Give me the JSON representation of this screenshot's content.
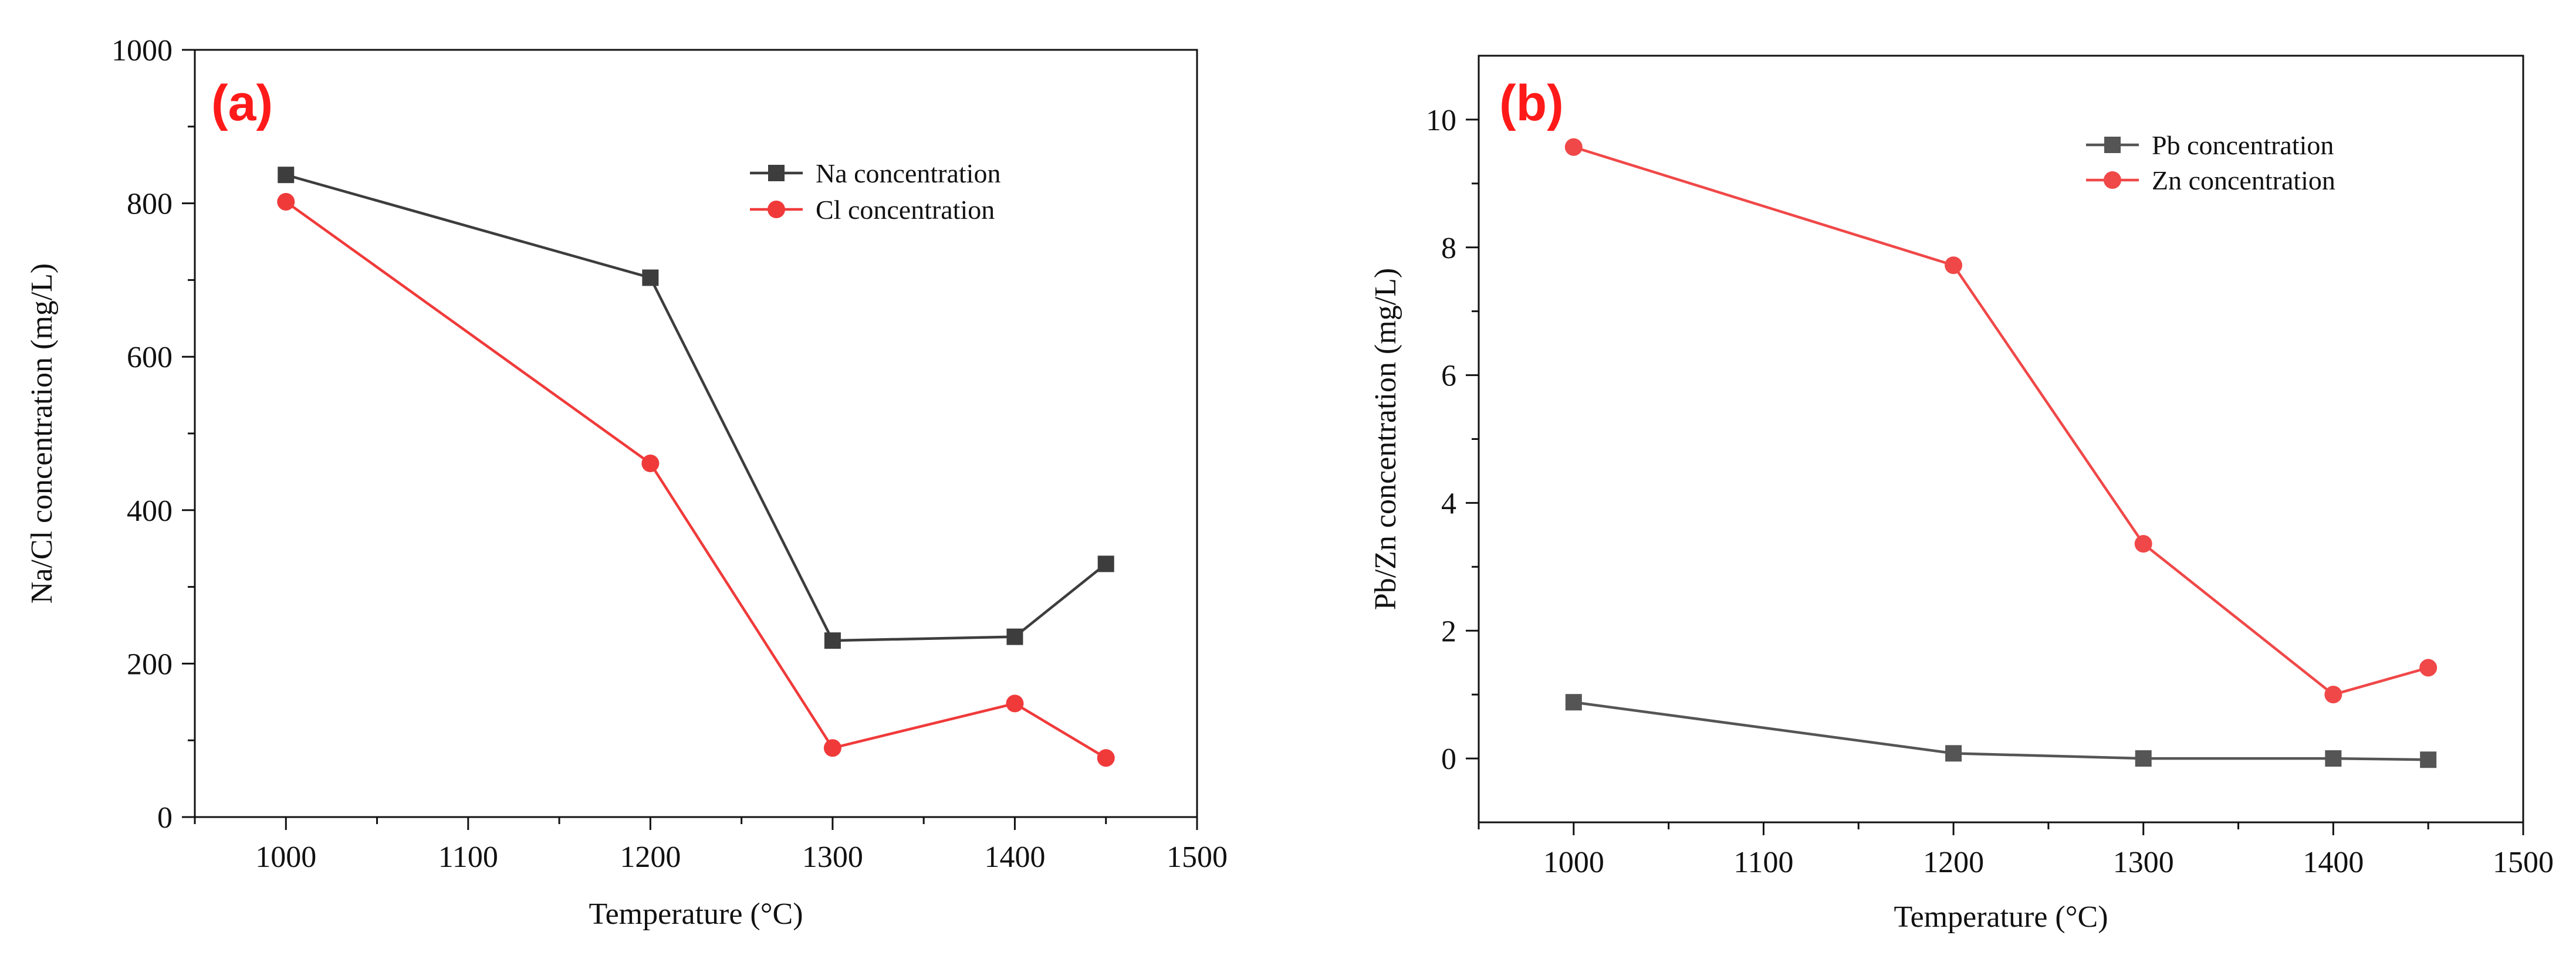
{
  "chart_data": [
    {
      "type": "line",
      "panel_label": "(a)",
      "xlabel": "Temperature (°C)",
      "ylabel": "Na/Cl concentration (mg/L)",
      "xlim": [
        950,
        1500
      ],
      "ylim": [
        0,
        1000
      ],
      "xticks": [
        1000,
        1100,
        1200,
        1300,
        1400,
        1500
      ],
      "yticks": [
        0,
        200,
        400,
        600,
        800,
        1000
      ],
      "legend_position": "top-right",
      "series": [
        {
          "name": "Na concentration",
          "color": "#3d3d3d",
          "marker": "square",
          "x": [
            1000,
            1200,
            1300,
            1400,
            1450
          ],
          "y": [
            837,
            703,
            230,
            235,
            330
          ]
        },
        {
          "name": "Cl concentration",
          "color": "#f03a3a",
          "marker": "circle",
          "x": [
            1000,
            1200,
            1300,
            1400,
            1450
          ],
          "y": [
            802,
            461,
            90,
            148,
            77
          ]
        }
      ]
    },
    {
      "type": "line",
      "panel_label": "(b)",
      "xlabel": "Temperature (°C)",
      "ylabel": "Pb/Zn concentration (mg/L)",
      "xlim": [
        950,
        1500
      ],
      "ylim": [
        -1,
        11
      ],
      "xticks": [
        1000,
        1100,
        1200,
        1300,
        1400,
        1500
      ],
      "yticks": [
        0,
        2,
        4,
        6,
        8,
        10
      ],
      "legend_position": "top-right",
      "series": [
        {
          "name": "Pb concentration",
          "color": "#555555",
          "marker": "square",
          "x": [
            1000,
            1200,
            1300,
            1400,
            1450
          ],
          "y": [
            0.88,
            0.08,
            0.0,
            0.0,
            -0.02
          ]
        },
        {
          "name": "Zn concentration",
          "color": "#f04848",
          "marker": "circle",
          "x": [
            1000,
            1200,
            1300,
            1400,
            1450
          ],
          "y": [
            9.57,
            7.72,
            3.36,
            1.0,
            1.42
          ]
        }
      ]
    }
  ],
  "colors": {
    "panel_tag": "#ff1a1a",
    "axis": "#111111"
  }
}
